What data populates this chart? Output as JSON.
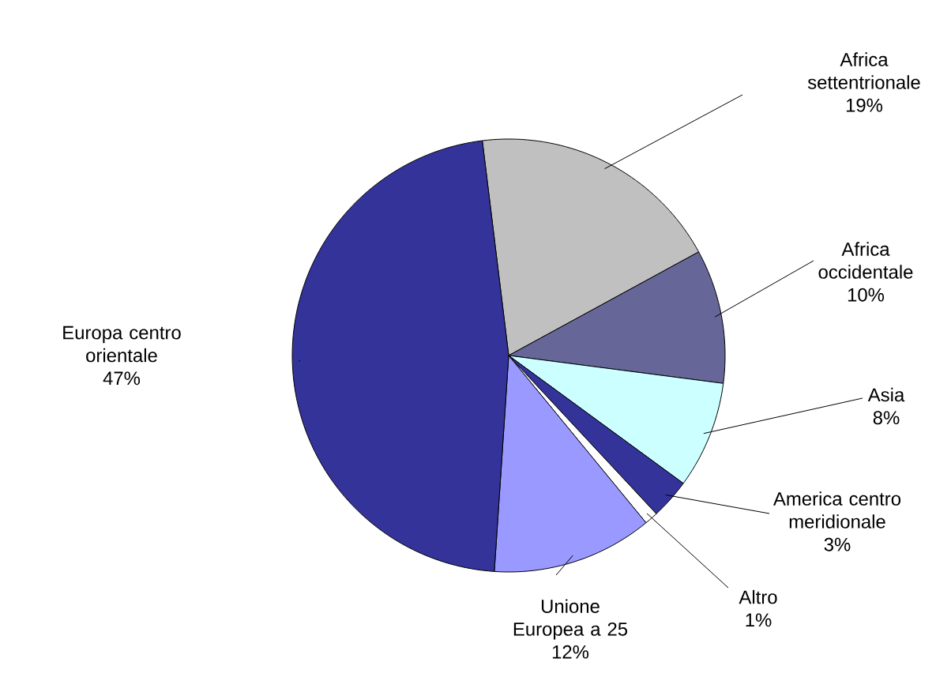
{
  "chart_data": {
    "type": "pie",
    "categories": [
      "Africa settentrionale",
      "Africa occidentale",
      "Asia",
      "America centro meridionale",
      "Altro",
      "Unione Europea a 25",
      "Europa centro orientale"
    ],
    "values": [
      19,
      10,
      8,
      3,
      1,
      12,
      47
    ],
    "value_labels": [
      "19%",
      "10%",
      "8%",
      "3%",
      "1%",
      "12%",
      "47%"
    ],
    "colors": [
      "#c0c0c0",
      "#666699",
      "#ccffff",
      "#333399",
      "#ffffff",
      "#9999ff",
      "#333399"
    ],
    "legend": false
  }
}
